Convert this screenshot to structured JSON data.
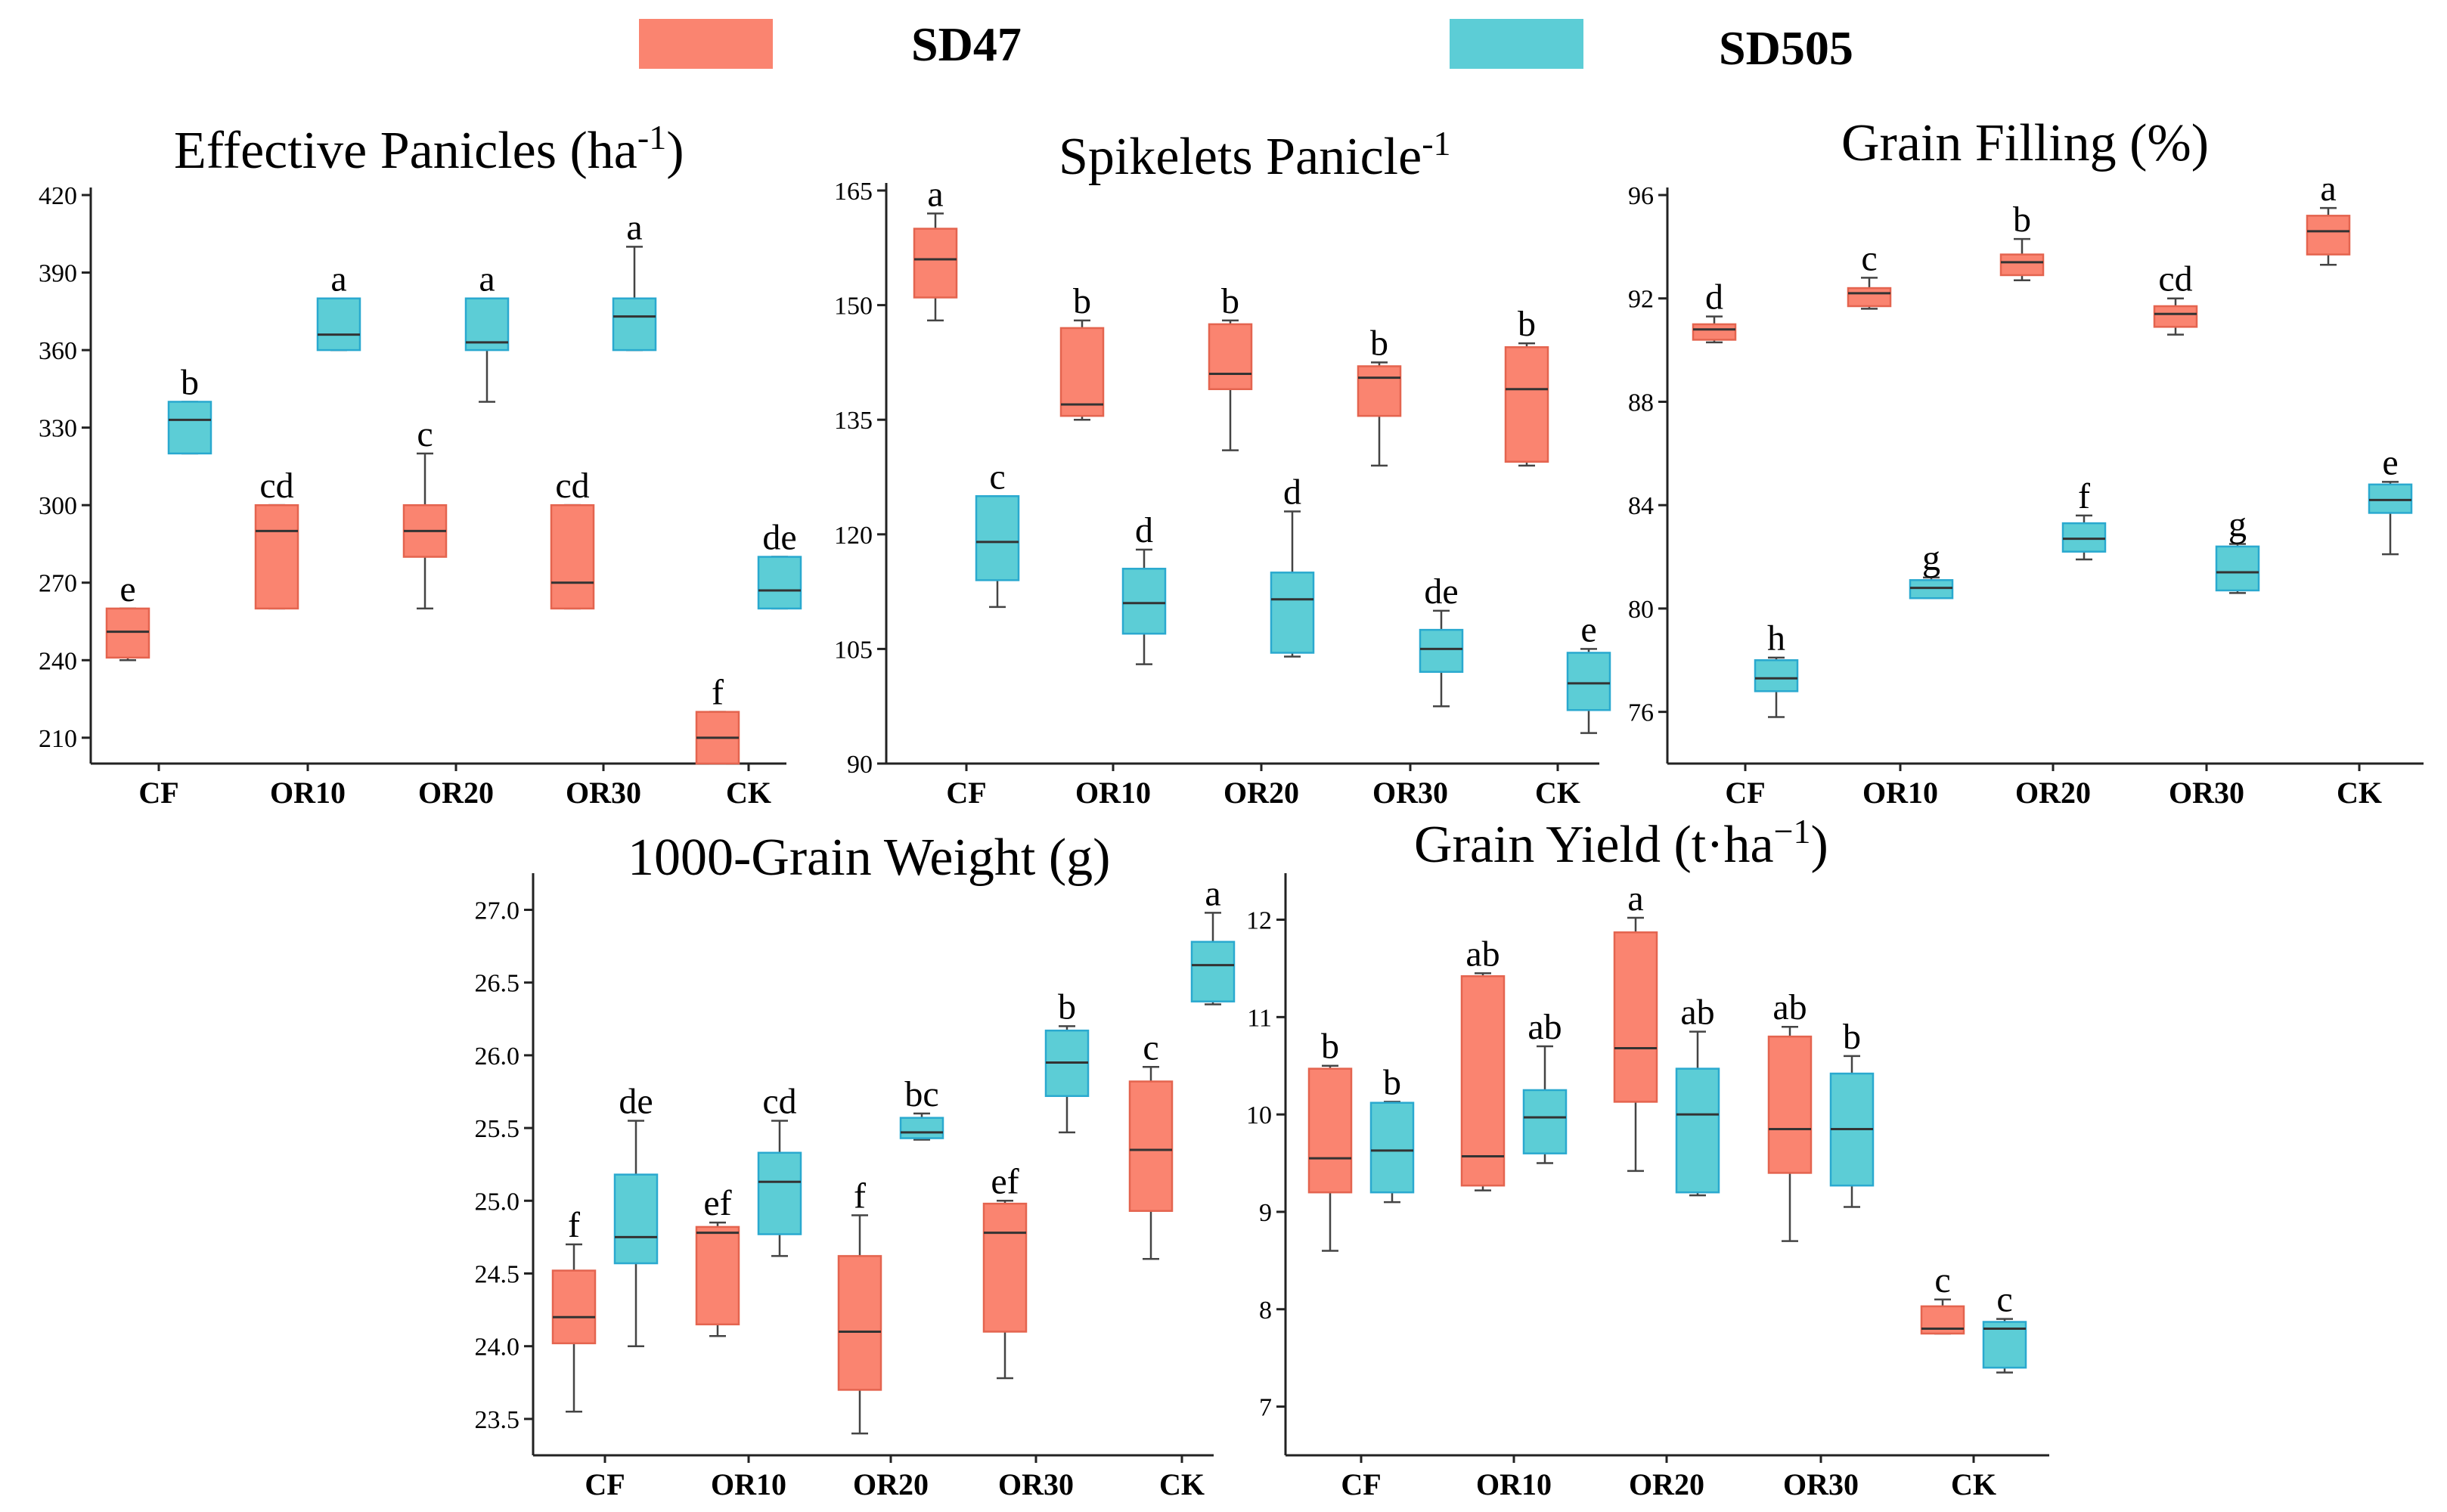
{
  "legend": {
    "items": [
      {
        "name": "SD47",
        "color": "#FA8470"
      },
      {
        "name": "SD505",
        "color": "#5CCDD6"
      }
    ]
  },
  "colors": {
    "SD47_fill": "#FA8470",
    "SD47_stroke": "#E4644F",
    "SD505_fill": "#5CCDD6",
    "SD505_stroke": "#2AA9CF"
  },
  "chart_data": [
    {
      "type": "box",
      "id": "effective-panicles",
      "title_html": "Effective Panicles (ha<tspan baseline-shift='super' font-size='46'>-1</tspan>)",
      "title_text": "Effective Panicles (ha-1)",
      "categories": [
        "CF",
        "OR10",
        "OR20",
        "OR30",
        "CK"
      ],
      "ylim": [
        200,
        420
      ],
      "yticks": [
        210,
        240,
        270,
        300,
        330,
        360,
        390,
        420
      ],
      "series": [
        {
          "name": "SD47",
          "boxes": [
            {
              "min": 240,
              "q1": 241,
              "median": 251,
              "q3": 260,
              "max": 260,
              "letter": "e"
            },
            {
              "min": 260,
              "q1": 260,
              "median": 290,
              "q3": 300,
              "max": 300,
              "letter": "cd"
            },
            {
              "min": 260,
              "q1": 280,
              "median": 290,
              "q3": 300,
              "max": 320,
              "letter": "c"
            },
            {
              "min": 260,
              "q1": 260,
              "median": 270,
              "q3": 300,
              "max": 300,
              "letter": "cd"
            },
            {
              "min": 200,
              "q1": 200,
              "median": 210,
              "q3": 220,
              "max": 220,
              "letter": "f"
            }
          ]
        },
        {
          "name": "SD505",
          "boxes": [
            {
              "min": 320,
              "q1": 320,
              "median": 333,
              "q3": 340,
              "max": 340,
              "letter": "b"
            },
            {
              "min": 360,
              "q1": 360,
              "median": 366,
              "q3": 380,
              "max": 380,
              "letter": "a"
            },
            {
              "min": 340,
              "q1": 360,
              "median": 363,
              "q3": 380,
              "max": 380,
              "letter": "a"
            },
            {
              "min": 360,
              "q1": 360,
              "median": 373,
              "q3": 380,
              "max": 400,
              "letter": "a"
            },
            {
              "min": 260,
              "q1": 260,
              "median": 267,
              "q3": 280,
              "max": 280,
              "letter": "de"
            }
          ]
        }
      ]
    },
    {
      "type": "box",
      "id": "spikelets-panicle",
      "title_html": "Spikelets Panicle<tspan baseline-shift='super' font-size='46'>-1</tspan>",
      "title_text": "Spikelets Panicle-1",
      "categories": [
        "CF",
        "OR10",
        "OR20",
        "OR30",
        "CK"
      ],
      "ylim": [
        90,
        165
      ],
      "yticks": [
        90,
        105,
        120,
        135,
        150,
        165
      ],
      "series": [
        {
          "name": "SD47",
          "boxes": [
            {
              "min": 148,
              "q1": 151,
              "median": 156,
              "q3": 160,
              "max": 162,
              "letter": "a"
            },
            {
              "min": 135,
              "q1": 135.5,
              "median": 137,
              "q3": 147,
              "max": 148,
              "letter": "b"
            },
            {
              "min": 131,
              "q1": 139,
              "median": 141,
              "q3": 147.5,
              "max": 148,
              "letter": "b"
            },
            {
              "min": 129,
              "q1": 135.5,
              "median": 140.5,
              "q3": 142,
              "max": 142.5,
              "letter": "b"
            },
            {
              "min": 129,
              "q1": 129.5,
              "median": 139,
              "q3": 144.5,
              "max": 145,
              "letter": "b"
            }
          ]
        },
        {
          "name": "SD505",
          "boxes": [
            {
              "min": 110.5,
              "q1": 114,
              "median": 119,
              "q3": 125,
              "max": 125,
              "letter": "c"
            },
            {
              "min": 103,
              "q1": 107,
              "median": 111,
              "q3": 115.5,
              "max": 118,
              "letter": "d"
            },
            {
              "min": 104,
              "q1": 104.5,
              "median": 111.5,
              "q3": 115,
              "max": 123,
              "letter": "d"
            },
            {
              "min": 97.5,
              "q1": 102,
              "median": 105,
              "q3": 107.5,
              "max": 110,
              "letter": "de"
            },
            {
              "min": 94,
              "q1": 97,
              "median": 100.5,
              "q3": 104.5,
              "max": 105,
              "letter": "e"
            }
          ]
        }
      ]
    },
    {
      "type": "box",
      "id": "grain-filling",
      "title_html": "Grain Filling (%)",
      "title_text": "Grain Filling (%)",
      "categories": [
        "CF",
        "OR10",
        "OR20",
        "OR30",
        "CK"
      ],
      "ylim": [
        74,
        96
      ],
      "yticks": [
        76,
        80,
        84,
        88,
        92,
        96
      ],
      "series": [
        {
          "name": "SD47",
          "boxes": [
            {
              "min": 90.3,
              "q1": 90.4,
              "median": 90.8,
              "q3": 91.0,
              "max": 91.3,
              "letter": "d"
            },
            {
              "min": 91.6,
              "q1": 91.7,
              "median": 92.2,
              "q3": 92.4,
              "max": 92.8,
              "letter": "c"
            },
            {
              "min": 92.7,
              "q1": 92.9,
              "median": 93.4,
              "q3": 93.7,
              "max": 94.3,
              "letter": "b"
            },
            {
              "min": 90.6,
              "q1": 90.9,
              "median": 91.4,
              "q3": 91.7,
              "max": 92.0,
              "letter": "cd"
            },
            {
              "min": 93.3,
              "q1": 93.7,
              "median": 94.6,
              "q3": 95.2,
              "max": 95.5,
              "letter": "a"
            }
          ]
        },
        {
          "name": "SD505",
          "boxes": [
            {
              "min": 75.8,
              "q1": 76.8,
              "median": 77.3,
              "q3": 78.0,
              "max": 78.1,
              "letter": "h"
            },
            {
              "min": 80.4,
              "q1": 80.4,
              "median": 80.8,
              "q3": 81.1,
              "max": 81.2,
              "letter": "g"
            },
            {
              "min": 81.9,
              "q1": 82.2,
              "median": 82.7,
              "q3": 83.3,
              "max": 83.6,
              "letter": "f"
            },
            {
              "min": 80.6,
              "q1": 80.7,
              "median": 81.4,
              "q3": 82.4,
              "max": 82.5,
              "letter": "g"
            },
            {
              "min": 82.1,
              "q1": 83.7,
              "median": 84.2,
              "q3": 84.8,
              "max": 84.9,
              "letter": "e"
            }
          ]
        }
      ]
    },
    {
      "type": "box",
      "id": "grain-weight",
      "title_html": "1000-Grain Weight  (g)",
      "title_text": "1000-Grain Weight  (g)",
      "categories": [
        "CF",
        "OR10",
        "OR20",
        "OR30",
        "CK"
      ],
      "ylim": [
        23.25,
        27.2
      ],
      "yticks": [
        23.5,
        24.0,
        24.5,
        25.0,
        25.5,
        26.0,
        26.5,
        27.0
      ],
      "ytick_labels": [
        "23.5",
        "24.0",
        "24.5",
        "25.0",
        "25.5",
        "26.0",
        "26.5",
        "27.0"
      ],
      "series": [
        {
          "name": "SD47",
          "boxes": [
            {
              "min": 23.55,
              "q1": 24.02,
              "median": 24.2,
              "q3": 24.52,
              "max": 24.7,
              "letter": "f"
            },
            {
              "min": 24.07,
              "q1": 24.15,
              "median": 24.78,
              "q3": 24.82,
              "max": 24.85,
              "letter": "ef"
            },
            {
              "min": 23.4,
              "q1": 23.7,
              "median": 24.1,
              "q3": 24.62,
              "max": 24.9,
              "letter": "f"
            },
            {
              "min": 23.78,
              "q1": 24.1,
              "median": 24.78,
              "q3": 24.98,
              "max": 25.0,
              "letter": "ef"
            },
            {
              "min": 24.6,
              "q1": 24.93,
              "median": 25.35,
              "q3": 25.82,
              "max": 25.92,
              "letter": "c"
            }
          ]
        },
        {
          "name": "SD505",
          "boxes": [
            {
              "min": 24.0,
              "q1": 24.57,
              "median": 24.75,
              "q3": 25.18,
              "max": 25.55,
              "letter": "de"
            },
            {
              "min": 24.62,
              "q1": 24.77,
              "median": 25.13,
              "q3": 25.33,
              "max": 25.55,
              "letter": "cd"
            },
            {
              "min": 25.42,
              "q1": 25.43,
              "median": 25.47,
              "q3": 25.57,
              "max": 25.6,
              "letter": "bc"
            },
            {
              "min": 25.47,
              "q1": 25.72,
              "median": 25.95,
              "q3": 26.17,
              "max": 26.2,
              "letter": "b"
            },
            {
              "min": 26.35,
              "q1": 26.37,
              "median": 26.62,
              "q3": 26.78,
              "max": 26.98,
              "letter": "a"
            }
          ]
        }
      ]
    },
    {
      "type": "box",
      "id": "grain-yield",
      "title_html": "Grain Yield  (t·ha<tspan baseline-shift='super' font-size='46'>−1</tspan>)",
      "title_text": "Grain Yield  (t·ha−1)",
      "categories": [
        "CF",
        "OR10",
        "OR20",
        "OR30",
        "CK"
      ],
      "ylim": [
        6.5,
        12.4
      ],
      "yticks": [
        7,
        8,
        9,
        10,
        11,
        12
      ],
      "series": [
        {
          "name": "SD47",
          "boxes": [
            {
              "min": 8.6,
              "q1": 9.2,
              "median": 9.55,
              "q3": 10.47,
              "max": 10.5,
              "letter": "b"
            },
            {
              "min": 9.22,
              "q1": 9.27,
              "median": 9.57,
              "q3": 11.42,
              "max": 11.45,
              "letter": "ab"
            },
            {
              "min": 9.42,
              "q1": 10.13,
              "median": 10.68,
              "q3": 11.87,
              "max": 12.02,
              "letter": "a"
            },
            {
              "min": 8.7,
              "q1": 9.4,
              "median": 9.85,
              "q3": 10.8,
              "max": 10.9,
              "letter": "ab"
            },
            {
              "min": 7.75,
              "q1": 7.75,
              "median": 7.8,
              "q3": 8.03,
              "max": 8.1,
              "letter": "c"
            }
          ]
        },
        {
          "name": "SD505",
          "boxes": [
            {
              "min": 9.1,
              "q1": 9.2,
              "median": 9.63,
              "q3": 10.12,
              "max": 10.13,
              "letter": "b"
            },
            {
              "min": 9.5,
              "q1": 9.6,
              "median": 9.97,
              "q3": 10.25,
              "max": 10.7,
              "letter": "ab"
            },
            {
              "min": 9.17,
              "q1": 9.2,
              "median": 10.0,
              "q3": 10.47,
              "max": 10.85,
              "letter": "ab"
            },
            {
              "min": 9.05,
              "q1": 9.27,
              "median": 9.85,
              "q3": 10.42,
              "max": 10.6,
              "letter": "b"
            },
            {
              "min": 7.35,
              "q1": 7.4,
              "median": 7.8,
              "q3": 7.87,
              "max": 7.9,
              "letter": "c"
            }
          ]
        }
      ]
    }
  ]
}
